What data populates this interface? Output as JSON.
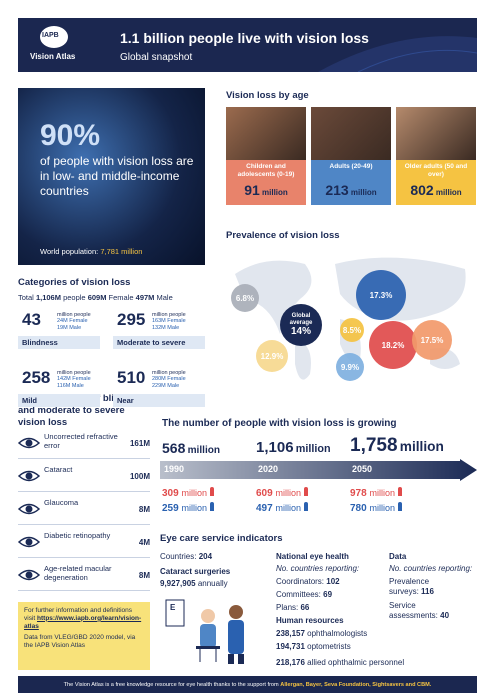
{
  "header": {
    "logo": "IAPB",
    "logo_sub": "Vision Atlas",
    "title": "1.1 billion people live with vision loss",
    "subtitle": "Global snapshot"
  },
  "hero": {
    "percent": "90%",
    "text": "of people with vision loss are in low- and middle-income countries",
    "population_label": "World population:",
    "population_value": "7,781 million"
  },
  "age": {
    "title": "Vision loss by age",
    "unit": "million",
    "groups": [
      {
        "label": "Children and adolescents (0-19)",
        "value": 91
      },
      {
        "label": "Adults (20-49)",
        "value": 213
      },
      {
        "label": "Older adults (50 and over)",
        "value": 802
      }
    ]
  },
  "prevalence": {
    "title": "Prevalence of vision loss",
    "global_label": "Global average",
    "global_value": "14%",
    "regions": [
      "6.8%",
      "17.3%",
      "8.5%",
      "12.9%",
      "9.9%",
      "18.2%",
      "17.5%"
    ]
  },
  "categories": {
    "title": "Categories of vision loss",
    "total_label": "Total",
    "total": "1,106M",
    "people": "people",
    "female": "609M",
    "female_label": "Female",
    "male": "497M",
    "male_label": "Male",
    "unit": "million people",
    "items": [
      {
        "value": 43,
        "female": "24M Female",
        "male": "19M Male",
        "label": "Blindness"
      },
      {
        "value": 295,
        "female": "163M Female",
        "male": "132M Male",
        "label": "Moderate to severe"
      },
      {
        "value": 258,
        "female": "142M Female",
        "male": "116M Male",
        "label": "Mild"
      },
      {
        "value": 510,
        "female": "280M Female",
        "male": "229M Male",
        "label": "Near"
      }
    ]
  },
  "causes": {
    "title": "Top five causes of blindness and moderate to severe vision loss",
    "items": [
      {
        "label": "Uncorrected refractive error",
        "value": "161M"
      },
      {
        "label": "Cataract",
        "value": "100M"
      },
      {
        "label": "Glaucoma",
        "value": "8M"
      },
      {
        "label": "Diabetic retinopathy",
        "value": "4M"
      },
      {
        "label": "Age-related macular degeneration",
        "value": "8M"
      }
    ]
  },
  "growth": {
    "title": "The number of people with vision loss is growing",
    "unit": "million",
    "years": [
      {
        "year": "1990",
        "total": 568,
        "female": 309,
        "male": 259
      },
      {
        "year": "2020",
        "total": "1,106",
        "female": 609,
        "male": 497
      },
      {
        "year": "2050",
        "total": "1,758",
        "female": 978,
        "male": 780
      }
    ]
  },
  "services": {
    "title": "Eye care service indicators",
    "countries_label": "Countries:",
    "countries": 204,
    "cataract_title": "Cataract surgeries",
    "cataract_value": "9,927,905",
    "cataract_unit": "annually",
    "national": {
      "title": "National eye health",
      "reporting": "No. countries reporting:",
      "items": [
        {
          "label": "Coordinators:",
          "value": 102
        },
        {
          "label": "Committees:",
          "value": 69
        },
        {
          "label": "Plans:",
          "value": 66
        }
      ]
    },
    "hr": {
      "title": "Human resources",
      "items": [
        {
          "value": "238,157",
          "label": "ophthalmologists"
        },
        {
          "value": "194,731",
          "label": "optometrists"
        },
        {
          "value": "218,176",
          "label": "allied ophthalmic personnel"
        }
      ]
    },
    "data": {
      "title": "Data",
      "reporting": "No. countries reporting:",
      "items": [
        {
          "label": "Prevalence surveys:",
          "value": 116
        },
        {
          "label": "Service assessments:",
          "value": 40
        }
      ]
    }
  },
  "info": {
    "text": "For further information and definitions visit",
    "url": "https://www.iapb.org/learn/vision-atlas",
    "source": "Data from VLEG/GBD 2020 model, via the IAPB Vision Atlas"
  },
  "footer": {
    "text": "The Vision Atlas is a free knowledge resource for eye health thanks to the support from",
    "sponsors": "Allergan, Bayer, Seva Foundation, Sightsavers and CBM."
  }
}
